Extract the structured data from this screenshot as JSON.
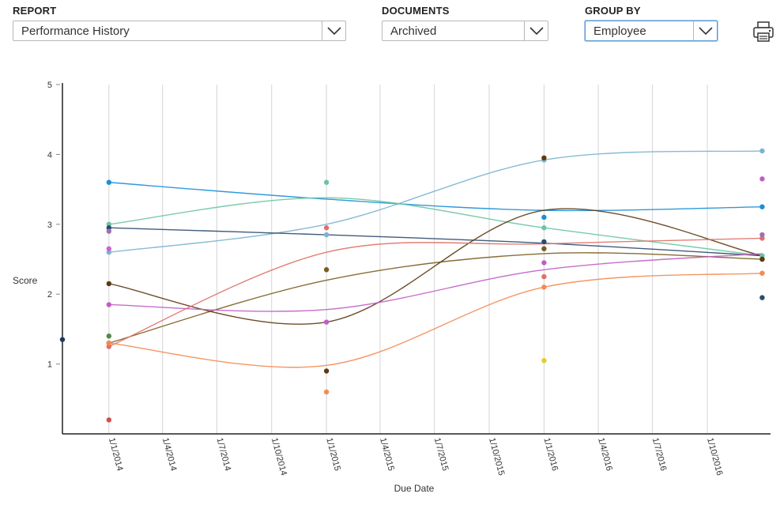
{
  "controls": {
    "report": {
      "label": "REPORT",
      "value": "Performance History"
    },
    "documents": {
      "label": "DOCUMENTS",
      "value": "Archived"
    },
    "group_by": {
      "label": "GROUP BY",
      "value": "Employee"
    }
  },
  "icons": {
    "dropdown": "chevron-down-icon",
    "print": "printer-icon"
  },
  "chart_data": {
    "type": "scatter",
    "xlabel": "Due Date",
    "ylabel": "Score",
    "ylim": [
      0,
      5
    ],
    "yticks": [
      1,
      2,
      3,
      4,
      5
    ],
    "xlim": [
      "2013-10-15",
      "2017-01-15"
    ],
    "xticks": [
      "2014-01-01",
      "2014-04-01",
      "2014-07-01",
      "2014-10-01",
      "2015-01-01",
      "2015-04-01",
      "2015-07-01",
      "2015-10-01",
      "2016-01-01",
      "2016-04-01",
      "2016-07-01",
      "2016-10-01"
    ],
    "xtick_labels": [
      "1/1/2014",
      "1/4/2014",
      "1/7/2014",
      "1/10/2014",
      "1/1/2015",
      "1/4/2015",
      "1/7/2015",
      "1/10/2015",
      "1/1/2016",
      "1/4/2016",
      "1/7/2016",
      "1/10/2016"
    ],
    "x_dates": [
      "2014-01-01",
      "2015-01-01",
      "2016-01-01",
      "2017-01-01"
    ],
    "grid": "vertical",
    "series": [
      {
        "color": "#7ab4cf",
        "values": [
          2.6,
          2.85,
          3.92,
          4.05
        ],
        "trend": [
          2.6,
          3.0,
          3.92,
          4.05
        ]
      },
      {
        "color": "#1a8fd6",
        "values": [
          3.6,
          null,
          3.1,
          3.25
        ],
        "trend": [
          3.6,
          3.36,
          3.2,
          3.25
        ]
      },
      {
        "color": "#6ac5a1",
        "values": [
          3.0,
          3.6,
          2.95,
          2.55
        ],
        "trend": [
          3.0,
          3.38,
          2.95,
          2.55
        ]
      },
      {
        "color": "#2e4a6e",
        "values": [
          2.95,
          null,
          2.75,
          1.95
        ],
        "trend": [
          2.95,
          2.85,
          2.73,
          2.55
        ]
      },
      {
        "color": "#7a5c1e",
        "values": [
          1.3,
          2.35,
          2.65,
          2.5
        ],
        "trend": [
          1.3,
          2.2,
          2.58,
          2.5
        ]
      },
      {
        "color": "#5e3a12",
        "values": [
          2.15,
          0.9,
          3.95,
          2.5
        ],
        "trend": [
          2.15,
          1.6,
          3.2,
          2.55
        ]
      },
      {
        "color": "#c05ec4",
        "values": [
          1.85,
          1.6,
          2.45,
          3.65
        ],
        "trend": [
          1.85,
          1.78,
          2.35,
          2.58
        ]
      },
      {
        "color": "#e07068",
        "values": [
          1.25,
          2.95,
          2.25,
          2.8
        ],
        "trend": [
          1.25,
          2.6,
          2.72,
          2.8
        ]
      },
      {
        "color": "#f58a52",
        "values": [
          1.3,
          0.6,
          2.1,
          2.3
        ],
        "trend": [
          1.3,
          0.98,
          2.1,
          2.3
        ]
      },
      {
        "color": "#a070b0",
        "values": [
          2.9,
          null,
          null,
          2.85
        ]
      },
      {
        "color": "#c868cc",
        "values": [
          2.65,
          null,
          null,
          null
        ]
      },
      {
        "color": "#4e8a4a",
        "values": [
          1.4,
          null,
          null,
          null
        ]
      },
      {
        "color": "#d05050",
        "values": [
          0.2,
          null,
          null,
          null
        ]
      },
      {
        "color": "#e4cc30",
        "values": [
          null,
          null,
          1.05,
          null
        ]
      },
      {
        "color": "#1a3a5c",
        "values": [
          1.35
        ]
      }
    ],
    "extra_point_dates": {
      "14": [
        "2013-10-15"
      ]
    }
  }
}
